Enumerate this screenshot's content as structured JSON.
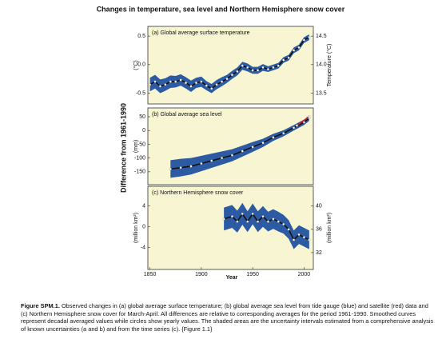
{
  "title": "Changes in temperature, sea level and Northern Hemisphere snow cover",
  "x_label": "Year",
  "y_label": "Difference from 1961-1990",
  "chart_data": [
    {
      "type": "line",
      "panel_label": "(a) Global average surface temperature",
      "y_label": "(°C)",
      "y2_label": "Temperature (°C)",
      "xlim": [
        1848,
        2009
      ],
      "ylim": [
        -0.69,
        0.67
      ],
      "yticks": [
        0.5,
        {
          "value": 0,
          "label": "0.0"
        },
        -0.5
      ],
      "y2lim": [
        13.31,
        14.67
      ],
      "y2ticks": [
        14.5,
        {
          "value": 14,
          "label": "14.0"
        },
        13.5
      ],
      "series": [
        {
          "color": "#111111",
          "band_color": "#2d5ba3",
          "x": [
            1850,
            1855,
            1860,
            1865,
            1870,
            1875,
            1880,
            1885,
            1890,
            1895,
            1900,
            1905,
            1910,
            1915,
            1920,
            1925,
            1930,
            1935,
            1940,
            1945,
            1950,
            1955,
            1960,
            1965,
            1970,
            1975,
            1980,
            1985,
            1990,
            1995,
            2000,
            2005
          ],
          "values": [
            -0.35,
            -0.3,
            -0.38,
            -0.35,
            -0.3,
            -0.3,
            -0.27,
            -0.32,
            -0.38,
            -0.32,
            -0.3,
            -0.37,
            -0.42,
            -0.35,
            -0.3,
            -0.25,
            -0.18,
            -0.12,
            -0.02,
            -0.05,
            -0.1,
            -0.1,
            -0.05,
            -0.08,
            -0.05,
            -0.02,
            0.08,
            0.12,
            0.25,
            0.3,
            0.43,
            0.48
          ],
          "uncertainty": [
            0.12,
            0.12,
            0.12,
            0.11,
            0.11,
            0.1,
            0.1,
            0.1,
            0.1,
            0.09,
            0.09,
            0.08,
            0.08,
            0.08,
            0.08,
            0.07,
            0.07,
            0.07,
            0.07,
            0.07,
            0.06,
            0.06,
            0.06,
            0.05,
            0.05,
            0.05,
            0.05,
            0.05,
            0.05,
            0.05,
            0.05,
            0.05
          ]
        }
      ]
    },
    {
      "type": "line",
      "panel_label": "(b) Global average sea level",
      "y_label": "(mm)",
      "xlim": [
        1848,
        2009
      ],
      "ylim": [
        -197,
        82
      ],
      "yticks": [
        50,
        0,
        -50,
        -100,
        -150
      ],
      "series": [
        {
          "color": "#111111",
          "band_color": "#2d5ba3",
          "x": [
            1870,
            1880,
            1890,
            1900,
            1910,
            1920,
            1930,
            1940,
            1950,
            1960,
            1970,
            1980,
            1990,
            2000,
            2005
          ],
          "values": [
            -140,
            -135,
            -130,
            -120,
            -110,
            -100,
            -90,
            -75,
            -60,
            -45,
            -25,
            -10,
            10,
            30,
            45
          ],
          "uncertainty": [
            32,
            32,
            30,
            28,
            26,
            24,
            22,
            20,
            18,
            15,
            13,
            11,
            10,
            10,
            10
          ]
        },
        {
          "color": "#d62020",
          "x": [
            1993,
            2005
          ],
          "values": [
            18,
            50
          ]
        }
      ]
    },
    {
      "type": "line",
      "panel_label": "(c) Northern Hemisphere snow cover",
      "y_label": "(million km²)",
      "y2_label": "(million km²)",
      "xlim": [
        1848,
        2009
      ],
      "ylim": [
        -8.2,
        7.8
      ],
      "yticks": [
        4,
        0,
        -4
      ],
      "y2lim": [
        29.1,
        43.4
      ],
      "y2ticks": [
        40,
        36,
        32
      ],
      "xticks": [
        1850,
        1900,
        1950,
        2000
      ],
      "series": [
        {
          "color": "#111111",
          "band_color": "#2d5ba3",
          "x": [
            1922,
            1930,
            1935,
            1940,
            1945,
            1950,
            1955,
            1960,
            1965,
            1970,
            1975,
            1980,
            1985,
            1990,
            1995,
            2000,
            2005
          ],
          "values": [
            1.5,
            2,
            1,
            2.5,
            1,
            2.5,
            1,
            2,
            1,
            1.5,
            1,
            0.5,
            -0.5,
            -2.5,
            -1.5,
            -2,
            -2.5
          ],
          "uncertainty": [
            2.2,
            2.2,
            2.1,
            2.1,
            2,
            2,
            2,
            2,
            1.9,
            1.9,
            1.9,
            1.8,
            1.8,
            1.8,
            1.8,
            1.8,
            1.8
          ]
        }
      ]
    }
  ],
  "caption": {
    "label": "Figure SPM.1.",
    "text": "Observed changes in (a) global average surface temperature; (b) global average sea level from tide gauge (blue) and satellite (red) data and (c) Northern Hemisphere snow cover for March-April. All differences are relative to corresponding averages for the period 1961-1990. Smoothed curves represent decadal averaged values while circles show yearly values. The shaded areas are the uncertainty intervals estimated from a comprehensive analysis of known uncertainties (a and b) and from the time series (c). {Figure 1.1}"
  }
}
